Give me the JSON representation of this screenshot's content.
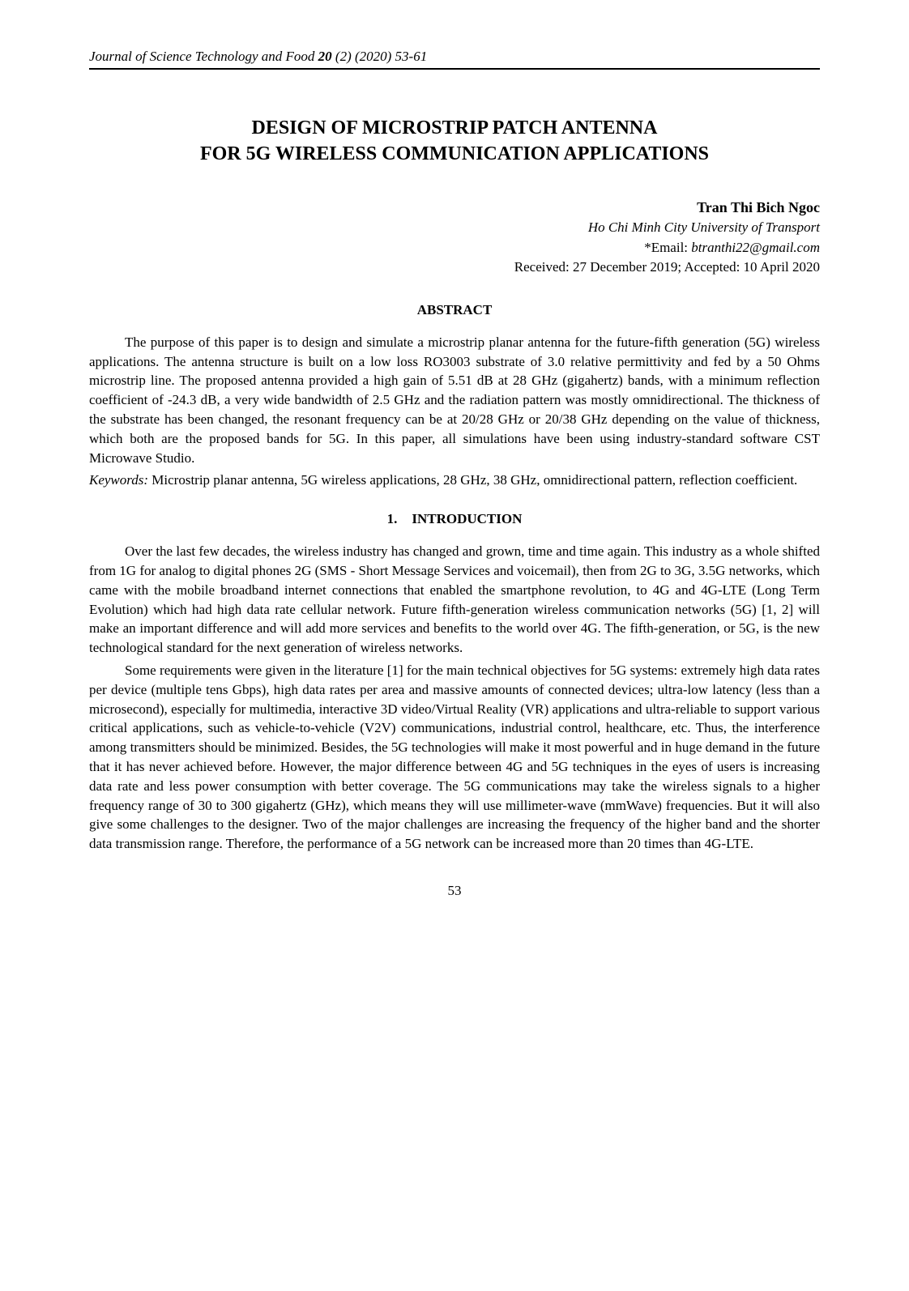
{
  "header": {
    "journal": "Journal of Science Technology and Food ",
    "volume": "20",
    "issue_year_pages": " (2) (2020) 53-61"
  },
  "title": "DESIGN OF MICROSTRIP PATCH ANTENNA\nFOR 5G WIRELESS COMMUNICATION APPLICATIONS",
  "author": {
    "name": "Tran Thi Bich Ngoc",
    "affiliation": "Ho Chi Minh City University of Transport",
    "email_label": "*Email: ",
    "email": "btranthi22@gmail.com",
    "received_accepted": "Received: 27 December 2019; Accepted: 10 April 2020"
  },
  "abstract": {
    "heading": "ABSTRACT",
    "text": "The purpose of this paper is to design and simulate a microstrip planar antenna for the future-fifth generation (5G) wireless applications. The antenna structure is built on a low loss RO3003 substrate of 3.0 relative permittivity and fed by a 50 Ohms microstrip line. The proposed antenna provided a high gain of 5.51 dB at 28 GHz (gigahertz) bands, with a minimum reflection coefficient of -24.3 dB, a very wide bandwidth of 2.5 GHz and the radiation pattern was mostly omnidirectional. The thickness of the substrate has been changed, the resonant frequency can be at 20/28 GHz or 20/38 GHz depending on the value of thickness, which both are the proposed bands for 5G. In this paper, all simulations have been using industry-standard software CST Microwave Studio."
  },
  "keywords": {
    "label": "Keywords:",
    "text": " Microstrip planar antenna, 5G wireless applications, 28 GHz, 38 GHz, omnidirectional pattern, reflection coefficient."
  },
  "introduction": {
    "number": "1.",
    "heading": "INTRODUCTION",
    "paragraphs": [
      "Over the last few decades, the wireless industry has changed and grown, time and time again. This industry as a whole shifted from 1G for analog to digital phones 2G (SMS - Short Message Services and voicemail), then from 2G to 3G, 3.5G networks, which came with the mobile broadband internet connections that enabled the smartphone revolution, to 4G and 4G-LTE (Long Term Evolution) which had high data rate cellular network. Future fifth-generation wireless communication networks (5G) [1, 2] will make an important difference and will add more services and benefits to the world over 4G. The fifth-generation, or 5G, is the new technological standard for the next generation of wireless networks.",
      "Some requirements were given in the literature [1] for the main technical objectives for 5G systems: extremely high data rates per device (multiple tens Gbps), high data rates per area and massive amounts of connected devices; ultra-low latency (less than a microsecond), especially for multimedia, interactive 3D video/Virtual Reality (VR) applications and ultra-reliable to support various critical applications, such as vehicle-to-vehicle (V2V) communications, industrial control, healthcare, etc. Thus, the interference among transmitters should be minimized. Besides, the 5G technologies will make it most powerful and in huge demand in the future that it has never achieved before. However, the major difference between 4G and 5G techniques in the eyes of users is increasing data rate and less power consumption with better coverage. The 5G communications may take the wireless signals to a higher frequency range of 30 to 300 gigahertz (GHz), which means they will use millimeter-wave (mmWave) frequencies. But it will also give some challenges to the designer. Two of the major challenges are increasing the frequency of the higher band and the shorter data transmission range. Therefore, the performance of a 5G network can be increased more than 20 times than 4G-LTE."
    ]
  },
  "page_number": "53",
  "colors": {
    "text": "#000000",
    "background": "#ffffff",
    "rule": "#000000"
  },
  "typography": {
    "base_family": "Times New Roman",
    "title_size_pt": 18,
    "body_size_pt": 12.5,
    "header_size_pt": 12.5
  }
}
